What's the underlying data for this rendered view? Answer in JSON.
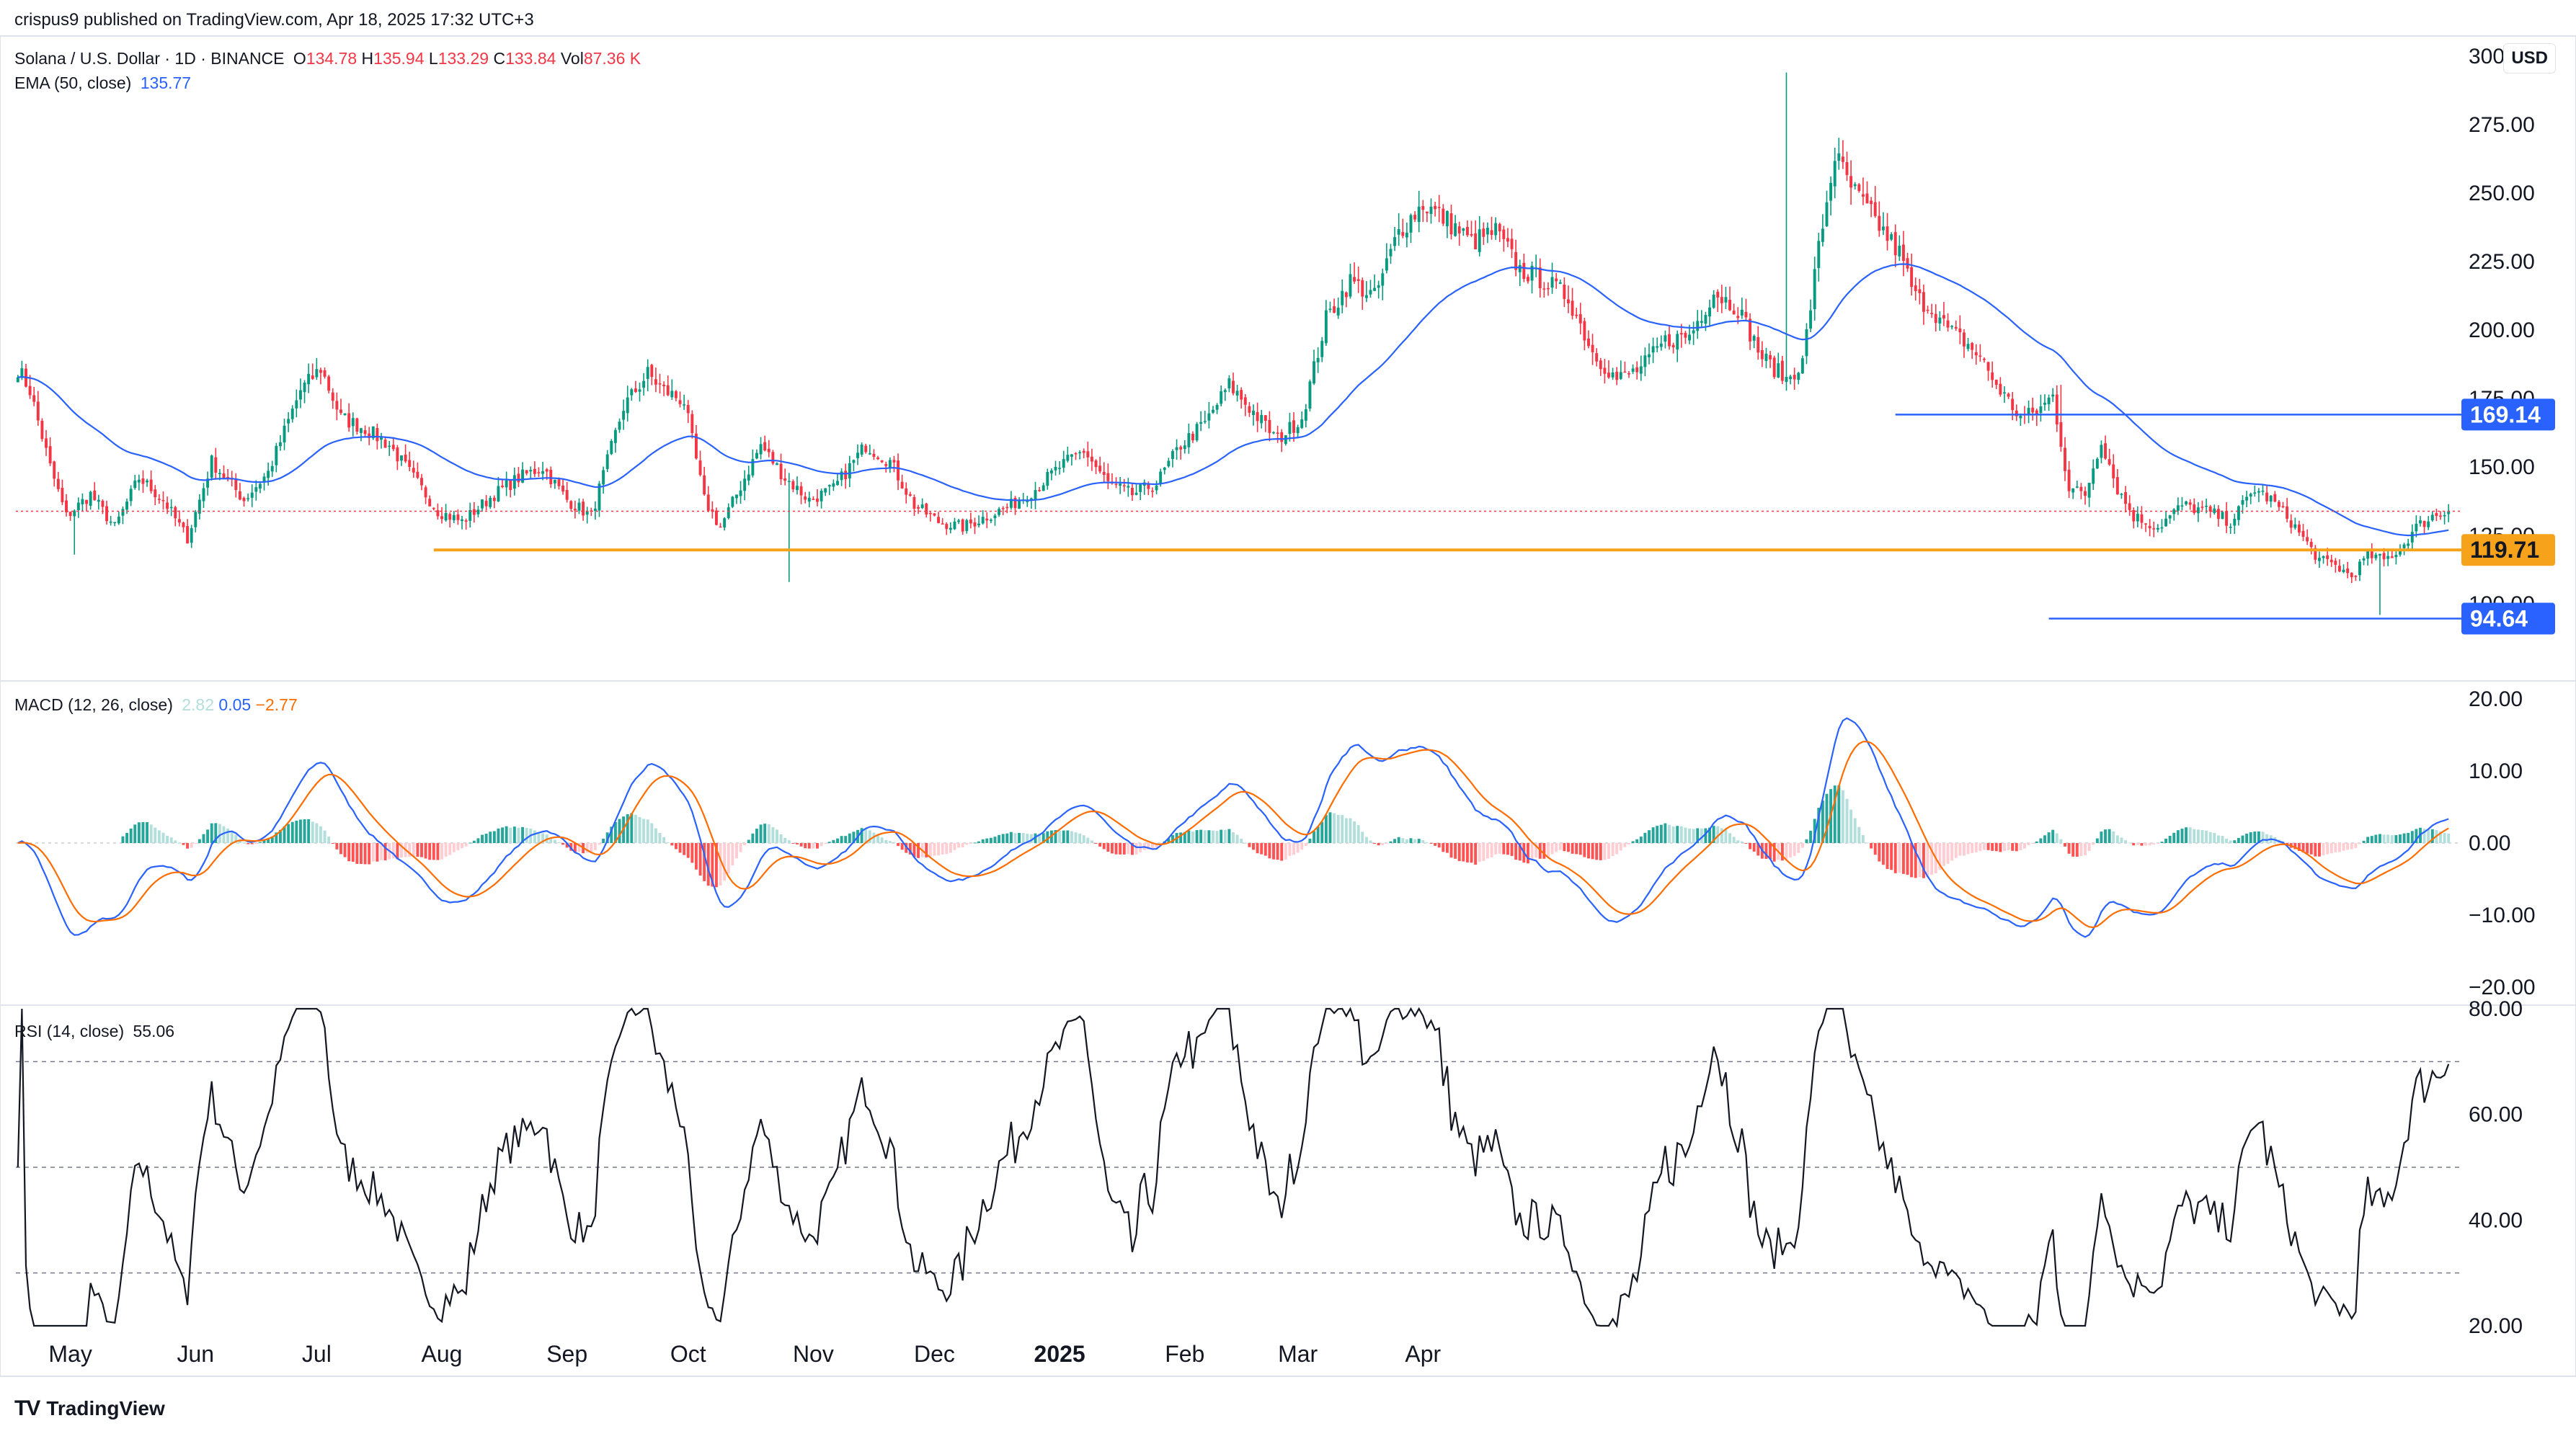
{
  "publisher": "crispus9 published on TradingView.com, Apr 18, 2025 17:32 UTC+3",
  "currency": "USD",
  "legend": {
    "symbol": "Solana / U.S. Dollar · 1D · BINANCE",
    "o_label": "O",
    "o": "134.78",
    "h_label": "H",
    "h": "135.94",
    "l_label": "L",
    "l": "133.29",
    "c_label": "C",
    "c": "133.84",
    "vol_label": "Vol",
    "vol": "87.36 K",
    "ema_label": "EMA (50, close)",
    "ema": "135.77",
    "macd_label": "MACD (12, 26, close)",
    "macd_hist": "2.82",
    "macd_line": "0.05",
    "macd_signal": "−2.77",
    "rsi_label": "RSI (14, close)",
    "rsi": "55.06"
  },
  "footer": {
    "logo": "TV",
    "brand": "TradingView"
  },
  "colors": {
    "up": "#089981",
    "down": "#f23645",
    "ema": "#2962ff",
    "signal": "#ff6d00",
    "orange_level": "#f7a21b",
    "blue_level": "#2962ff"
  },
  "chart_data": [
    {
      "type": "candlestick",
      "title": "Solana / U.S. Dollar · 1D · BINANCE",
      "x_labels": [
        "May",
        "Jun",
        "Jul",
        "Aug",
        "Sep",
        "Oct",
        "Nov",
        "Dec",
        "2025",
        "Feb",
        "Mar",
        "Apr"
      ],
      "y_ticks": [
        "300.00",
        "275.00",
        "250.00",
        "225.00",
        "200.00",
        "175.00",
        "150.00",
        "125.00",
        "100.00"
      ],
      "ylim": [
        89,
        306
      ],
      "levels": [
        {
          "label": "169.14",
          "value": 169.14,
          "color": "#2962ff"
        },
        {
          "label": "119.71",
          "value": 119.71,
          "color": "#f7a21b"
        },
        {
          "label": "94.64",
          "value": 94.64,
          "color": "#2962ff"
        }
      ],
      "last_price": 133.84,
      "anchors": [
        [
          0,
          186
        ],
        [
          3,
          178
        ],
        [
          8,
          150
        ],
        [
          12,
          132
        ],
        [
          18,
          140
        ],
        [
          24,
          128
        ],
        [
          30,
          146
        ],
        [
          36,
          138
        ],
        [
          42,
          124
        ],
        [
          48,
          152
        ],
        [
          56,
          138
        ],
        [
          62,
          148
        ],
        [
          70,
          178
        ],
        [
          75,
          186
        ],
        [
          80,
          168
        ],
        [
          86,
          164
        ],
        [
          92,
          158
        ],
        [
          98,
          146
        ],
        [
          104,
          134
        ],
        [
          110,
          130
        ],
        [
          118,
          140
        ],
        [
          124,
          146
        ],
        [
          130,
          150
        ],
        [
          136,
          138
        ],
        [
          142,
          132
        ],
        [
          150,
          172
        ],
        [
          156,
          184
        ],
        [
          160,
          178
        ],
        [
          165,
          174
        ],
        [
          170,
          138
        ],
        [
          174,
          128
        ],
        [
          178,
          140
        ],
        [
          184,
          158
        ],
        [
          190,
          146
        ],
        [
          196,
          138
        ],
        [
          202,
          142
        ],
        [
          210,
          158
        ],
        [
          216,
          152
        ],
        [
          222,
          136
        ],
        [
          228,
          130
        ],
        [
          234,
          128
        ],
        [
          240,
          132
        ],
        [
          246,
          136
        ],
        [
          252,
          142
        ],
        [
          258,
          150
        ],
        [
          264,
          156
        ],
        [
          270,
          144
        ],
        [
          276,
          140
        ],
        [
          282,
          144
        ],
        [
          288,
          158
        ],
        [
          294,
          166
        ],
        [
          300,
          180
        ],
        [
          306,
          170
        ],
        [
          312,
          160
        ],
        [
          318,
          168
        ],
        [
          324,
          204
        ],
        [
          330,
          218
        ],
        [
          336,
          212
        ],
        [
          342,
          236
        ],
        [
          348,
          246
        ],
        [
          354,
          240
        ],
        [
          360,
          232
        ],
        [
          366,
          236
        ],
        [
          372,
          222
        ],
        [
          378,
          218
        ],
        [
          384,
          212
        ],
        [
          390,
          192
        ],
        [
          396,
          182
        ],
        [
          402,
          186
        ],
        [
          408,
          196
        ],
        [
          414,
          198
        ],
        [
          420,
          214
        ],
        [
          426,
          208
        ],
        [
          432,
          190
        ],
        [
          438,
          182
        ],
        [
          442,
          188
        ],
        [
          446,
          230
        ],
        [
          450,
          264
        ],
        [
          454,
          252
        ],
        [
          458,
          244
        ],
        [
          462,
          236
        ],
        [
          466,
          228
        ],
        [
          470,
          212
        ],
        [
          474,
          208
        ],
        [
          478,
          200
        ],
        [
          482,
          196
        ],
        [
          486,
          190
        ],
        [
          490,
          180
        ],
        [
          496,
          168
        ],
        [
          500,
          170
        ],
        [
          504,
          176
        ],
        [
          508,
          142
        ],
        [
          512,
          140
        ],
        [
          516,
          160
        ],
        [
          520,
          142
        ],
        [
          524,
          132
        ],
        [
          530,
          128
        ],
        [
          536,
          136
        ],
        [
          542,
          134
        ],
        [
          548,
          130
        ],
        [
          554,
          142
        ],
        [
          558,
          138
        ],
        [
          562,
          132
        ],
        [
          566,
          124
        ],
        [
          570,
          116
        ],
        [
          574,
          114
        ],
        [
          578,
          110
        ],
        [
          582,
          118
        ],
        [
          586,
          116
        ],
        [
          590,
          120
        ],
        [
          594,
          128
        ],
        [
          598,
          132
        ],
        [
          602,
          133.84
        ]
      ]
    },
    {
      "type": "line",
      "title": "MACD (12, 26, close)",
      "series_names": [
        "MACD",
        "Signal",
        "Histogram"
      ],
      "y_ticks": [
        "20.00",
        "10.00",
        "0.00",
        "−10.00",
        "−20.00"
      ],
      "ylim": [
        -22,
        22
      ],
      "last_values": {
        "histogram": 2.82,
        "macd": 0.05,
        "signal": -2.77
      }
    },
    {
      "type": "line",
      "title": "RSI (14, close)",
      "y_ticks": [
        "80.00",
        "60.00",
        "40.00",
        "20.00"
      ],
      "ylim": [
        20,
        80
      ],
      "bands": [
        70,
        50,
        30
      ],
      "last_value": 55.06
    }
  ]
}
